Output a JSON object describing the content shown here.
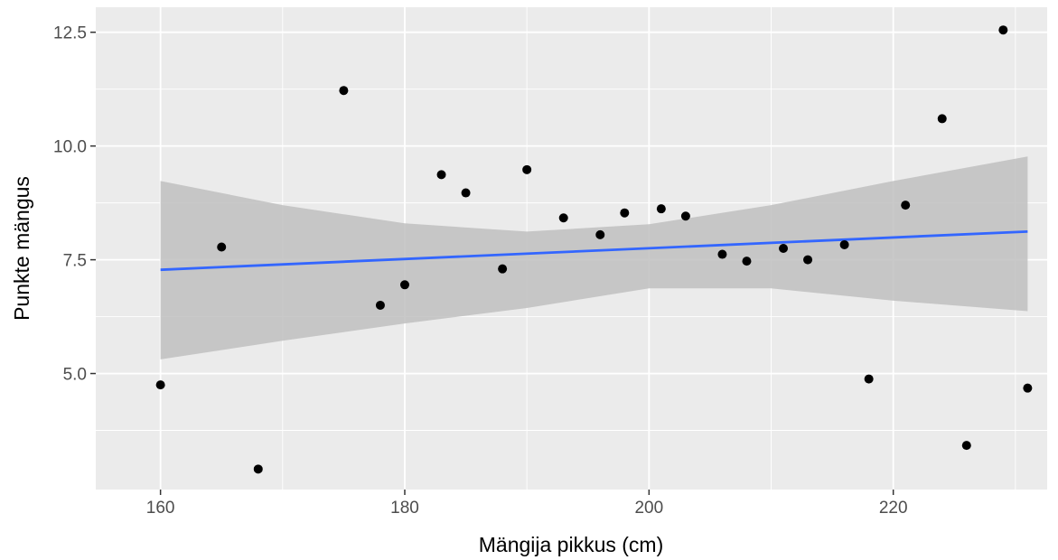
{
  "chart_data": {
    "type": "scatter",
    "title": "",
    "xlabel": "Mängija pikkus (cm)",
    "ylabel": "Punkte mängus",
    "xlim": [
      154.7,
      232.6
    ],
    "ylim": [
      2.45,
      13.05
    ],
    "x_ticks": [
      160,
      180,
      200,
      220
    ],
    "x_tick_labels": [
      "160",
      "180",
      "200",
      "220"
    ],
    "y_ticks": [
      5.0,
      7.5,
      10.0,
      12.5
    ],
    "y_tick_labels": [
      "5.0",
      "7.5",
      "10.0",
      "12.5"
    ],
    "grid": true,
    "points": [
      {
        "x": 160,
        "y": 4.75
      },
      {
        "x": 165,
        "y": 7.78
      },
      {
        "x": 168,
        "y": 2.9
      },
      {
        "x": 175,
        "y": 11.22
      },
      {
        "x": 178,
        "y": 6.5
      },
      {
        "x": 180,
        "y": 6.95
      },
      {
        "x": 183,
        "y": 9.37
      },
      {
        "x": 185,
        "y": 8.97
      },
      {
        "x": 188,
        "y": 7.3
      },
      {
        "x": 190,
        "y": 9.48
      },
      {
        "x": 193,
        "y": 8.42
      },
      {
        "x": 196,
        "y": 8.05
      },
      {
        "x": 198,
        "y": 8.53
      },
      {
        "x": 201,
        "y": 8.62
      },
      {
        "x": 203,
        "y": 8.46
      },
      {
        "x": 206,
        "y": 7.62
      },
      {
        "x": 208,
        "y": 7.47
      },
      {
        "x": 211,
        "y": 7.75
      },
      {
        "x": 213,
        "y": 7.5
      },
      {
        "x": 216,
        "y": 7.83
      },
      {
        "x": 218,
        "y": 4.88
      },
      {
        "x": 221,
        "y": 8.7
      },
      {
        "x": 224,
        "y": 10.6
      },
      {
        "x": 226,
        "y": 3.42
      },
      {
        "x": 229,
        "y": 12.55
      },
      {
        "x": 231,
        "y": 4.68
      }
    ],
    "trend": {
      "method": "lm",
      "x": [
        160,
        231
      ],
      "y": [
        7.28,
        8.12
      ],
      "color": "#3366ff",
      "band": {
        "x": [
          160,
          170,
          180,
          190,
          200,
          210,
          220,
          231
        ],
        "upper": [
          9.23,
          8.7,
          8.3,
          8.12,
          8.28,
          8.7,
          9.23,
          9.77
        ],
        "lower": [
          5.31,
          5.72,
          6.1,
          6.44,
          6.87,
          6.87,
          6.6,
          6.37
        ],
        "color": "#bfbfbf"
      }
    },
    "colors": {
      "panel": "#ebebeb",
      "grid": "#ffffff",
      "point": "#000000"
    }
  }
}
